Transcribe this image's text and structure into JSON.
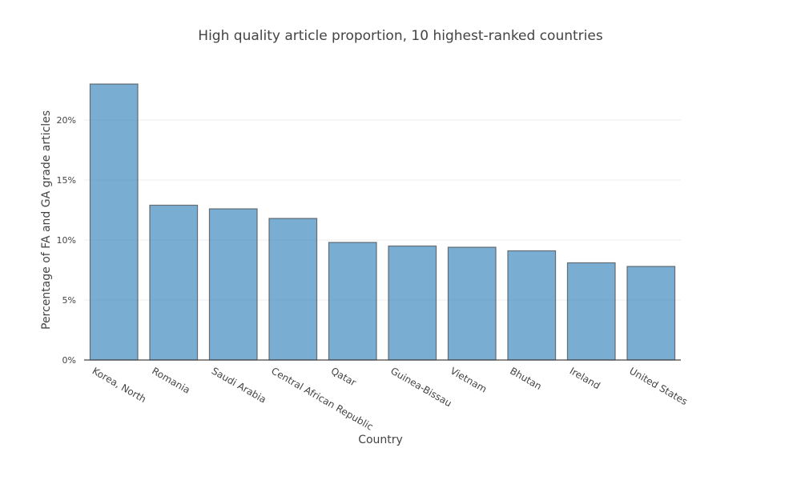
{
  "chart_data": {
    "type": "bar",
    "title": "High quality article proportion, 10 highest-ranked countries",
    "xlabel": "Country",
    "ylabel": "Percentage of FA and GA grade articles",
    "categories": [
      "Korea, North",
      "Romania",
      "Saudi Arabia",
      "Central African Republic",
      "Qatar",
      "Guinea-Bissau",
      "Vietnam",
      "Bhutan",
      "Ireland",
      "United States"
    ],
    "values": [
      23.0,
      12.9,
      12.6,
      11.8,
      9.8,
      9.5,
      9.4,
      9.1,
      8.1,
      7.8
    ],
    "ylim": [
      0,
      24
    ],
    "yticks": [
      0,
      5,
      10,
      15,
      20
    ],
    "ytick_labels": [
      "0%",
      "5%",
      "10%",
      "15%",
      "20%"
    ],
    "grid": true,
    "legend": "none",
    "colors": {
      "bar_fill": "#1f77b4",
      "bar_stroke": "#444444",
      "grid": "#eeeeee",
      "axis": "#444444",
      "text": "#444444"
    }
  }
}
